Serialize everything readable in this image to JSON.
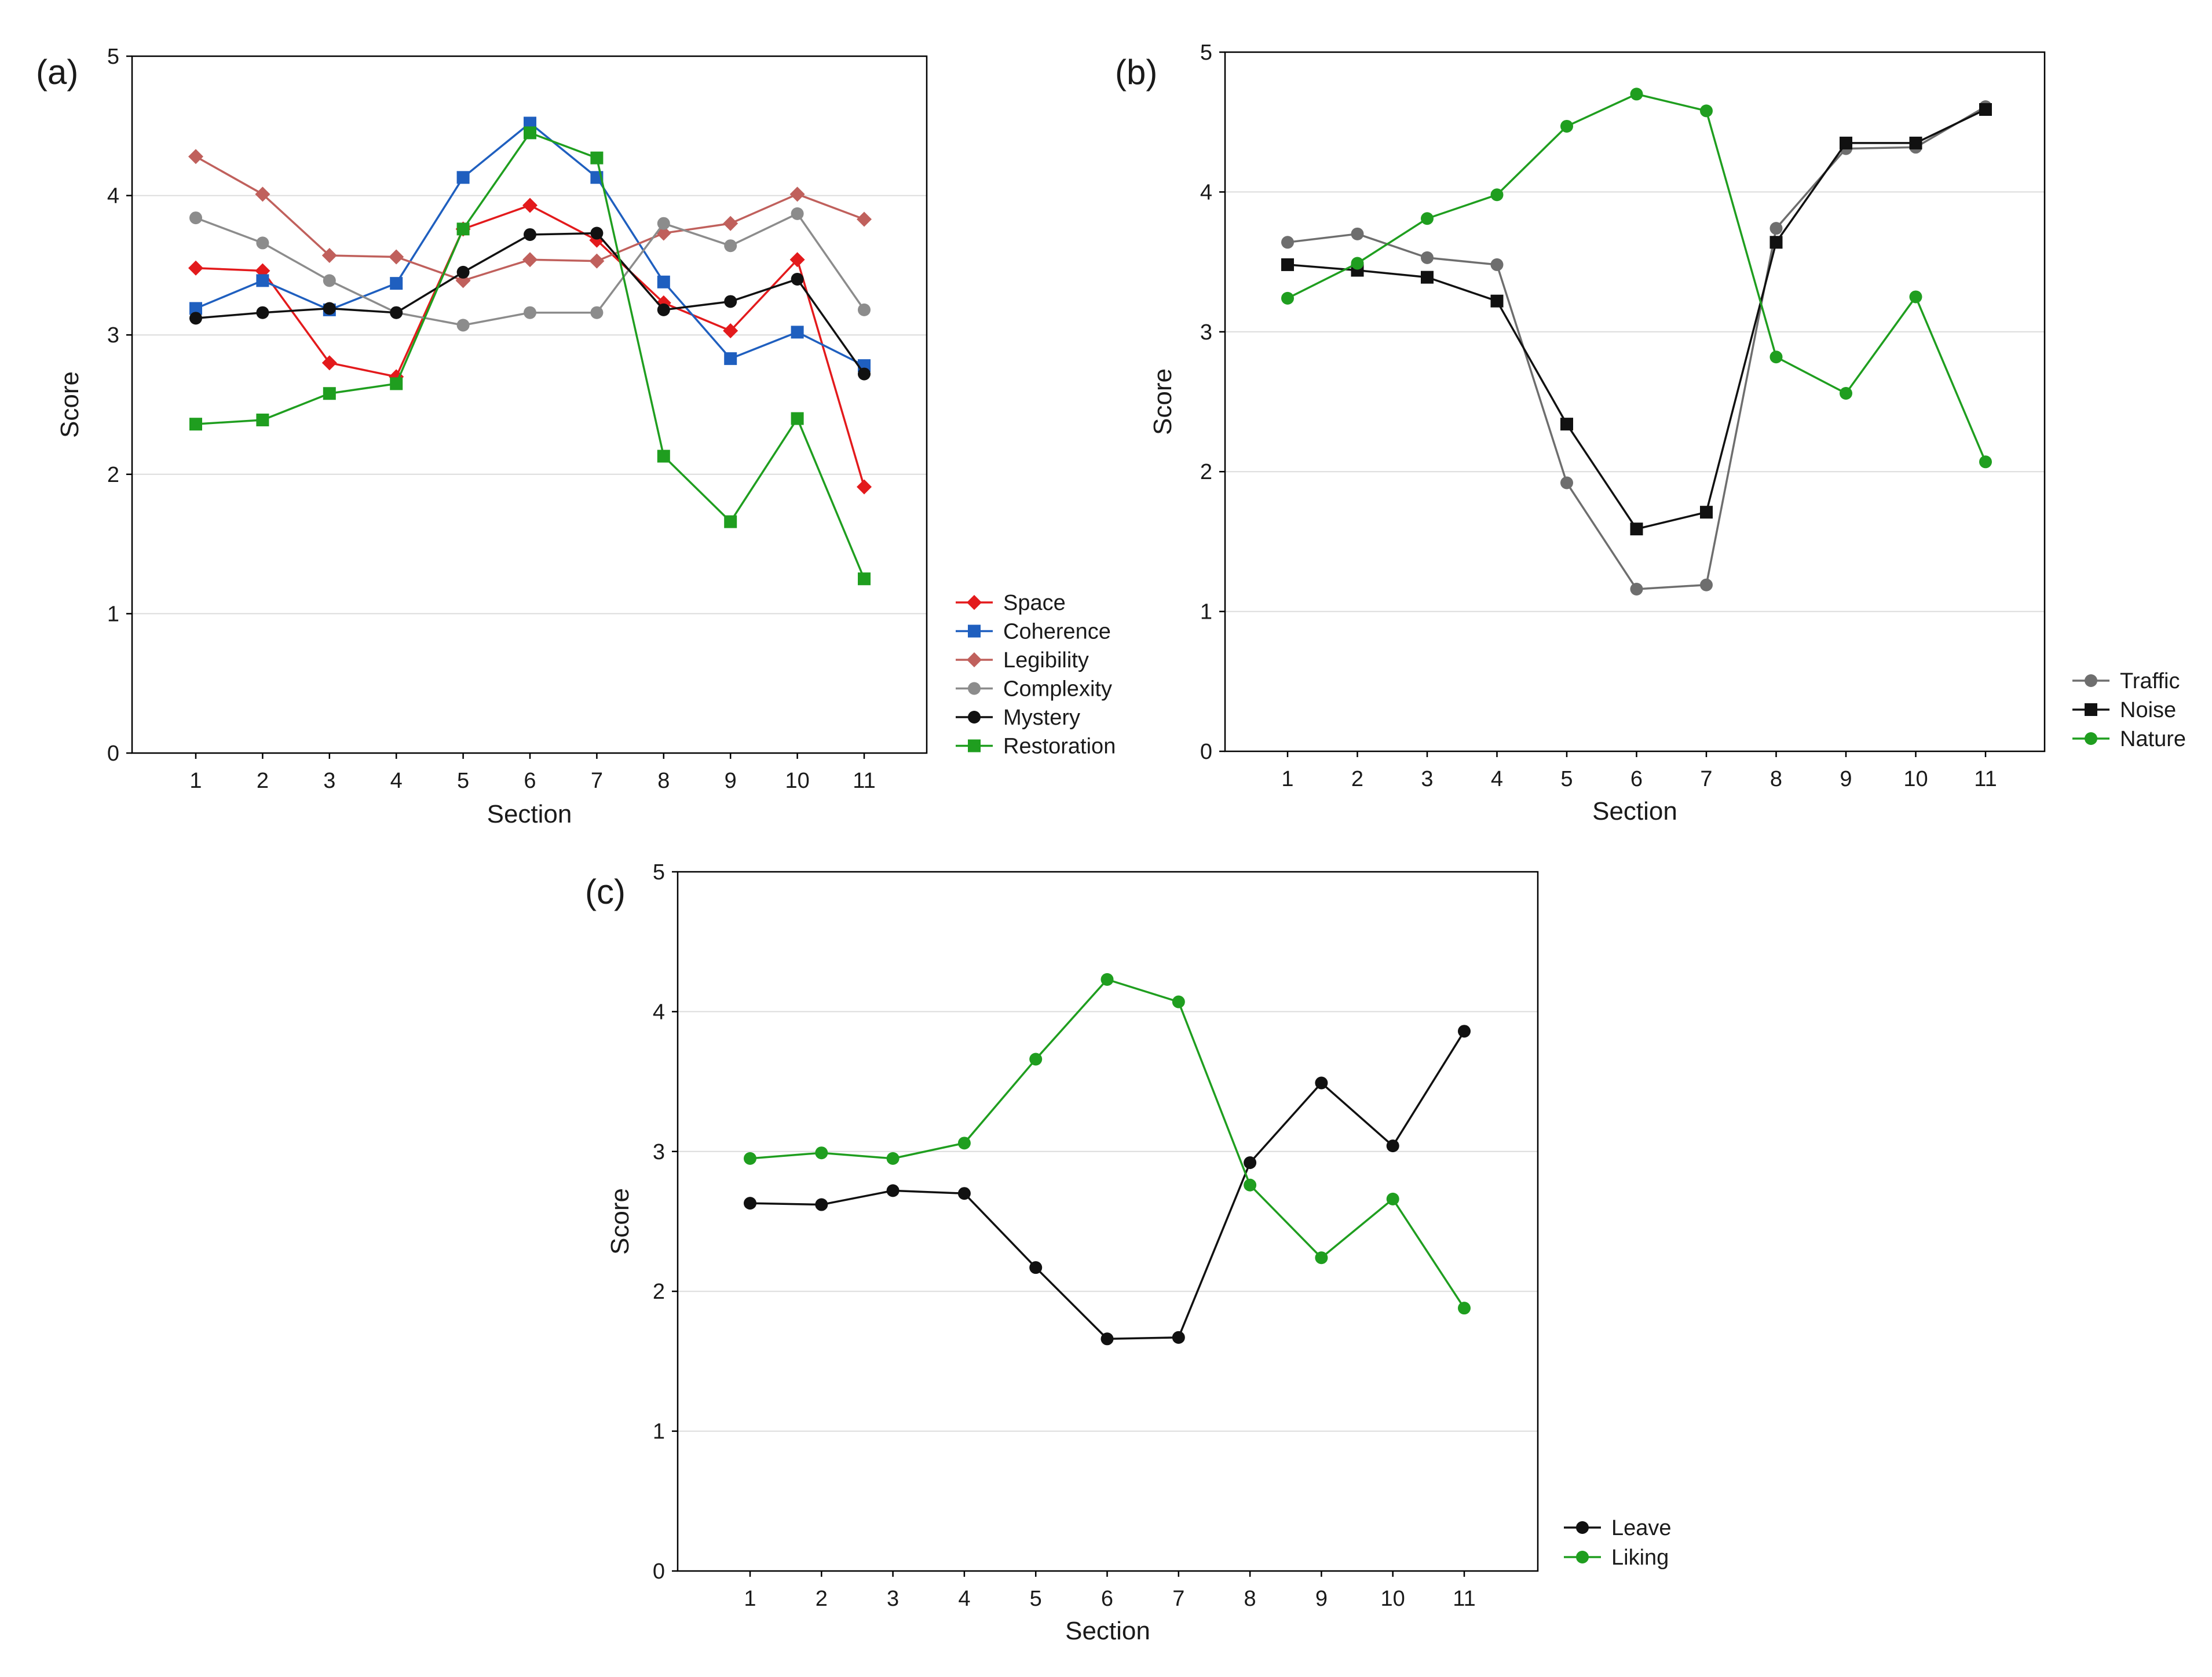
{
  "chart_data": [
    {
      "panel_label": "(a)",
      "type": "line",
      "xlabel": "Section",
      "ylabel": "Score",
      "ylim": [
        0,
        5
      ],
      "y_ticks": [
        0,
        1,
        2,
        3,
        4,
        5
      ],
      "x": [
        1,
        2,
        3,
        4,
        5,
        6,
        7,
        8,
        9,
        10,
        11
      ],
      "grid": "horizontal",
      "legend_position": "right-bottom",
      "series": [
        {
          "name": "Space",
          "color": "#e31a1c",
          "marker": "diamond",
          "values": [
            3.48,
            3.46,
            2.8,
            2.7,
            3.76,
            3.93,
            3.68,
            3.23,
            3.03,
            3.54,
            1.91
          ]
        },
        {
          "name": "Coherence",
          "color": "#1f5fbf",
          "marker": "square",
          "values": [
            3.19,
            3.39,
            3.18,
            3.37,
            4.13,
            4.52,
            4.13,
            3.38,
            2.83,
            3.02,
            2.78
          ]
        },
        {
          "name": "Legibility",
          "color": "#c0605c",
          "marker": "diamond",
          "values": [
            4.28,
            4.01,
            3.57,
            3.56,
            3.39,
            3.54,
            3.53,
            3.73,
            3.8,
            4.01,
            3.83
          ]
        },
        {
          "name": "Complexity",
          "color": "#8c8c8c",
          "marker": "circle",
          "values": [
            3.84,
            3.66,
            3.39,
            3.16,
            3.07,
            3.16,
            3.16,
            3.8,
            3.64,
            3.87,
            3.18
          ]
        },
        {
          "name": "Mystery",
          "color": "#111111",
          "marker": "circle",
          "values": [
            3.12,
            3.16,
            3.19,
            3.16,
            3.45,
            3.72,
            3.73,
            3.18,
            3.24,
            3.4,
            2.72
          ]
        },
        {
          "name": "Restoration",
          "color": "#1f9e1f",
          "marker": "square",
          "values": [
            2.36,
            2.39,
            2.58,
            2.65,
            3.76,
            4.45,
            4.27,
            2.13,
            1.66,
            2.4,
            1.25
          ]
        }
      ]
    },
    {
      "panel_label": "(b)",
      "type": "line",
      "xlabel": "Section",
      "ylabel": "Score",
      "ylim": [
        0,
        5
      ],
      "y_ticks": [
        0,
        1,
        2,
        3,
        4,
        5
      ],
      "x": [
        1,
        2,
        3,
        4,
        5,
        6,
        7,
        8,
        9,
        10,
        11
      ],
      "grid": "horizontal",
      "legend_position": "right-bottom",
      "series": [
        {
          "name": "Traffic",
          "color": "#6e6e6e",
          "marker": "circle",
          "values": [
            3.64,
            3.7,
            3.53,
            3.48,
            1.92,
            1.16,
            1.19,
            3.74,
            4.31,
            4.32,
            4.61
          ]
        },
        {
          "name": "Noise",
          "color": "#111111",
          "marker": "square",
          "values": [
            3.48,
            3.44,
            3.39,
            3.22,
            2.34,
            1.59,
            1.71,
            3.64,
            4.35,
            4.35,
            4.59
          ]
        },
        {
          "name": "Nature",
          "color": "#1f9e1f",
          "marker": "circle",
          "values": [
            3.24,
            3.49,
            3.81,
            3.98,
            4.47,
            4.7,
            4.58,
            2.82,
            2.56,
            3.25,
            2.07
          ]
        }
      ]
    },
    {
      "panel_label": "(c)",
      "type": "line",
      "xlabel": "Section",
      "ylabel": "Score",
      "ylim": [
        0,
        5
      ],
      "y_ticks": [
        0,
        1,
        2,
        3,
        4,
        5
      ],
      "x": [
        1,
        2,
        3,
        4,
        5,
        6,
        7,
        8,
        9,
        10,
        11
      ],
      "grid": "horizontal",
      "legend_position": "right-bottom",
      "series": [
        {
          "name": "Leave",
          "color": "#111111",
          "marker": "circle",
          "values": [
            2.63,
            2.62,
            2.72,
            2.7,
            2.17,
            1.66,
            1.67,
            2.92,
            3.49,
            3.04,
            3.86
          ]
        },
        {
          "name": "Liking",
          "color": "#1f9e1f",
          "marker": "circle",
          "values": [
            2.95,
            2.99,
            2.95,
            3.06,
            3.66,
            4.23,
            4.07,
            2.76,
            2.24,
            2.66,
            1.88
          ]
        }
      ]
    }
  ]
}
